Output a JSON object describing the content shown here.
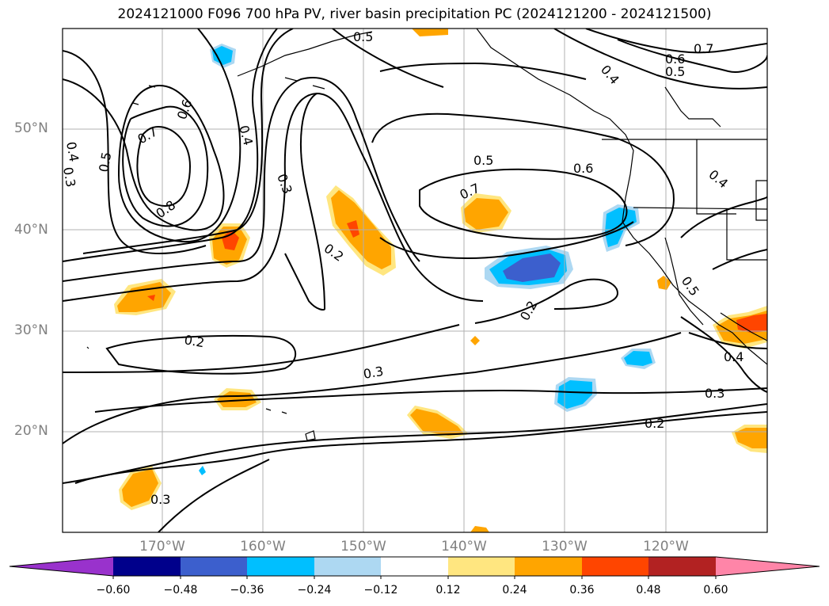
{
  "title": "2024121000 F096 700 hPa PV, river basin precipitation PC (2024121200 - 2024121500)",
  "map": {
    "lat_labels": [
      "50°N",
      "40°N",
      "30°N",
      "20°N"
    ],
    "lon_labels": [
      "170°W",
      "160°W",
      "150°W",
      "140°W",
      "130°W",
      "120°W"
    ],
    "gridlines": true
  },
  "contours": {
    "variable": "700 hPa PV",
    "labels": [
      "0.5",
      "0.7",
      "0.6",
      "0.5",
      "0.4",
      "0.4",
      "0.3",
      "0.5",
      "0.6",
      "0.7",
      "0.8",
      "0.4",
      "0.3",
      "0.2",
      "0.5",
      "0.6",
      "0.7",
      "0.4",
      "0.2",
      "0.5",
      "0.4",
      "0.2",
      "0.3",
      "0.3",
      "0.2",
      "0.3"
    ]
  },
  "colorbar": {
    "ticks": [
      "−0.60",
      "−0.48",
      "−0.36",
      "−0.24",
      "−0.12",
      "0.12",
      "0.24",
      "0.36",
      "0.48",
      "0.60"
    ],
    "colors": [
      "#9932cc",
      "#00008b",
      "#3c5fcd",
      "#00bfff",
      "#add8f2",
      "#ffffff",
      "#ffe680",
      "#ffa500",
      "#ff4500",
      "#b22222",
      "#ff85a8"
    ]
  }
}
